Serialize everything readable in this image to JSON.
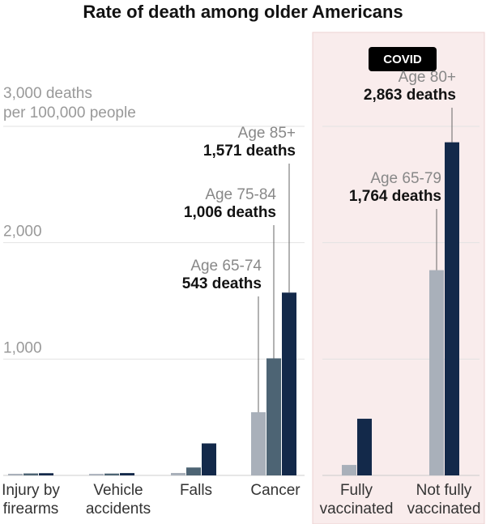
{
  "chart_data": {
    "type": "bar",
    "title": "Rate of death among older Americans",
    "ylabel_line1": "3,000 deaths",
    "ylabel_line2": "per 100,000 people",
    "ylim": [
      0,
      3000
    ],
    "yticks": [
      {
        "value": 0,
        "label": ""
      },
      {
        "value": 1000,
        "label": "1,000"
      },
      {
        "value": 2000,
        "label": "2,000"
      },
      {
        "value": 3000,
        "label": ""
      }
    ],
    "grid": true,
    "highlight_label": "COVID",
    "colors": {
      "light": "#a9b0ba",
      "mid": "#4d6474",
      "dark": "#13294a",
      "panel": "#f9ecec",
      "panel_border": "#edd2d2",
      "grid": "#e2e2e2",
      "leader": "#666666",
      "badge": "#000000"
    },
    "groups": [
      {
        "label_line1": "Injury by",
        "label_line2": "firearms",
        "bars": [
          {
            "series": "Age 65-74",
            "value": 14
          },
          {
            "series": "Age 75-84",
            "value": 17
          },
          {
            "series": "Age 85+",
            "value": 19
          }
        ]
      },
      {
        "label_line1": "Vehicle",
        "label_line2": "accidents",
        "bars": [
          {
            "series": "Age 65-74",
            "value": 13
          },
          {
            "series": "Age 75-84",
            "value": 16
          },
          {
            "series": "Age 85+",
            "value": 20
          }
        ]
      },
      {
        "label_line1": "Falls",
        "label_line2": "",
        "bars": [
          {
            "series": "Age 65-74",
            "value": 21
          },
          {
            "series": "Age 75-84",
            "value": 68
          },
          {
            "series": "Age 85+",
            "value": 275
          }
        ]
      },
      {
        "label_line1": "Cancer",
        "label_line2": "",
        "bars": [
          {
            "series": "Age 65-74",
            "value": 543,
            "annotation_age": "Age 65-74",
            "annotation_value": "543 deaths"
          },
          {
            "series": "Age 75-84",
            "value": 1006,
            "annotation_age": "Age 75-84",
            "annotation_value": "1,006 deaths"
          },
          {
            "series": "Age 85+",
            "value": 1571,
            "annotation_age": "Age 85+",
            "annotation_value": "1,571 deaths"
          }
        ]
      },
      {
        "label_line1": "Fully",
        "label_line2": "vaccinated",
        "covid": true,
        "bars": [
          {
            "series": "Age 65-79",
            "value": 90
          },
          {
            "series": "Age 80+",
            "value": 487
          }
        ]
      },
      {
        "label_line1": "Not fully",
        "label_line2": "vaccinated",
        "covid": true,
        "bars": [
          {
            "series": "Age 65-79",
            "value": 1764,
            "annotation_age": "Age 65-79",
            "annotation_value": "1,764 deaths"
          },
          {
            "series": "Age 80+",
            "value": 2863,
            "annotation_age": "Age 80+",
            "annotation_value": "2,863 deaths"
          }
        ]
      }
    ]
  }
}
